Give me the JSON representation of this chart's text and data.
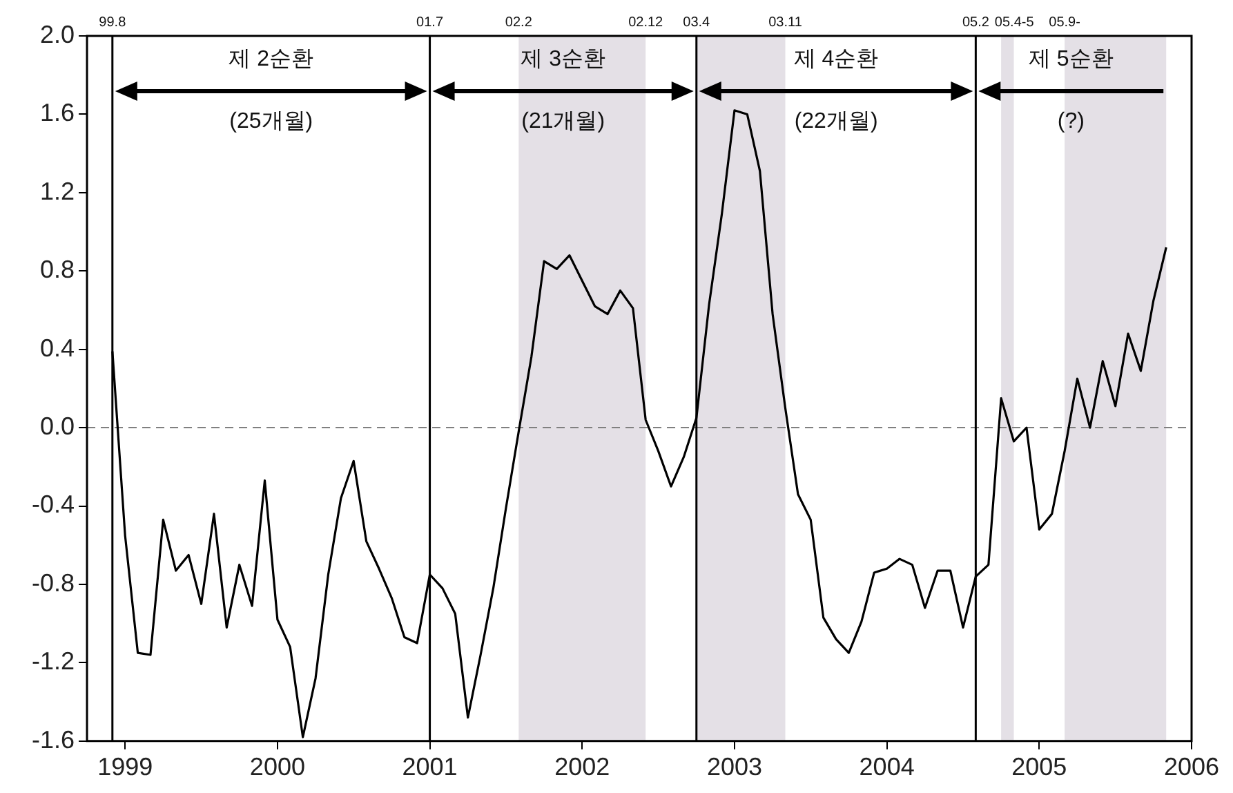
{
  "chart_data": {
    "type": "line",
    "x": [
      "1999-06",
      "1999-07",
      "1999-08",
      "1999-09",
      "1999-10",
      "1999-11",
      "1999-12",
      "2000-01",
      "2000-02",
      "2000-03",
      "2000-04",
      "2000-05",
      "2000-06",
      "2000-07",
      "2000-08",
      "2000-09",
      "2000-10",
      "2000-11",
      "2000-12",
      "2001-01",
      "2001-02",
      "2001-03",
      "2001-04",
      "2001-05",
      "2001-06",
      "2001-07",
      "2001-08",
      "2001-09",
      "2001-10",
      "2001-11",
      "2001-12",
      "2002-01",
      "2002-02",
      "2002-03",
      "2002-04",
      "2002-05",
      "2002-06",
      "2002-07",
      "2002-08",
      "2002-09",
      "2002-10",
      "2002-11",
      "2002-12",
      "2003-01",
      "2003-02",
      "2003-03",
      "2003-04",
      "2003-05",
      "2003-06",
      "2003-07",
      "2003-08",
      "2003-09",
      "2003-10",
      "2003-11",
      "2003-12",
      "2004-01",
      "2004-02",
      "2004-03",
      "2004-04",
      "2004-05",
      "2004-06",
      "2004-07",
      "2004-08",
      "2004-09",
      "2004-10",
      "2004-11",
      "2004-12",
      "2005-01",
      "2005-02",
      "2005-03",
      "2005-04",
      "2005-05",
      "2005-06",
      "2005-07",
      "2005-08",
      "2005-09",
      "2005-10",
      "2005-11",
      "2005-12",
      "2006-01",
      "2006-02",
      "2006-03",
      "2006-04",
      "2006-05"
    ],
    "series": [
      {
        "color": "#000000",
        "values": [
          0.39,
          -0.55,
          -1.15,
          -1.16,
          -0.47,
          -0.73,
          -0.65,
          -0.9,
          -0.44,
          -1.02,
          -0.7,
          -0.91,
          -0.27,
          -0.98,
          -1.12,
          -1.58,
          -1.28,
          -0.75,
          -0.36,
          -0.17,
          -0.58,
          -0.72,
          -0.87,
          -1.07,
          -1.1,
          -0.75,
          -0.82,
          -0.95,
          -1.48,
          -1.16,
          -0.82,
          -0.41,
          -0.02,
          0.36,
          0.85,
          0.81,
          0.88,
          0.75,
          0.62,
          0.58,
          0.7,
          0.61,
          0.04,
          -0.12,
          -0.3,
          -0.15,
          0.05,
          0.63,
          1.09,
          1.62,
          1.6,
          1.31,
          0.58,
          0.1,
          -0.34,
          -0.47,
          -0.97,
          -1.08,
          -1.15,
          -0.99,
          -0.74,
          -0.72,
          -0.67,
          -0.7,
          -0.92,
          -0.73,
          -0.73,
          -1.02,
          -0.76,
          -0.7,
          0.15,
          -0.07,
          0.0,
          -0.52,
          -0.44,
          -0.12,
          0.25,
          0.0,
          0.34,
          0.11,
          0.48,
          0.29,
          0.65,
          0.92
        ]
      }
    ],
    "xlim": [
      "1999-04",
      "2006-07"
    ],
    "xticks": [
      {
        "value": "1999-07",
        "label": "1999"
      },
      {
        "value": "2000-07",
        "label": "2000"
      },
      {
        "value": "2001-07",
        "label": "2001"
      },
      {
        "value": "2002-07",
        "label": "2002"
      },
      {
        "value": "2003-07",
        "label": "2003"
      },
      {
        "value": "2004-07",
        "label": "2004"
      },
      {
        "value": "2005-07",
        "label": "2005"
      },
      {
        "value": "2006-07",
        "label": "2006"
      }
    ],
    "ylim": [
      -1.6,
      2.0
    ],
    "yticks": [
      {
        "value": -1.6,
        "label": "-1.6"
      },
      {
        "value": -1.2,
        "label": "-1.2"
      },
      {
        "value": -0.8,
        "label": "-0.8"
      },
      {
        "value": -0.4,
        "label": "-0.4"
      },
      {
        "value": 0,
        "label": "0.0"
      },
      {
        "value": 0.4,
        "label": "0.4"
      },
      {
        "value": 0.8,
        "label": "0.8"
      },
      {
        "value": 1.2,
        "label": "1.2"
      },
      {
        "value": 1.6,
        "label": "1.6"
      },
      {
        "value": 2.0,
        "label": "2.0"
      }
    ],
    "grid": false,
    "legend": false,
    "ref_lines": [
      {
        "axis": "y",
        "value": 0,
        "color": "#808080",
        "line_style": "dashed"
      },
      {
        "axis": "x",
        "value": "1999-06",
        "color": "#000000",
        "line_style": "solid"
      },
      {
        "axis": "x",
        "value": "2001-07",
        "color": "#000000",
        "line_style": "solid"
      },
      {
        "axis": "x",
        "value": "2003-04",
        "color": "#000000",
        "line_style": "solid"
      },
      {
        "axis": "x",
        "value": "2005-02",
        "color": "#000000",
        "line_style": "solid"
      }
    ],
    "bands": [
      {
        "axis": "x",
        "from": "2002-02",
        "to": "2002-12",
        "color": "#e4e0e6"
      },
      {
        "axis": "x",
        "from": "2003-04",
        "to": "2003-11",
        "color": "#e4e0e6"
      },
      {
        "axis": "x",
        "from": "2005-04",
        "to": "2005-05",
        "color": "#e4e0e6"
      },
      {
        "axis": "x",
        "from": "2005-09",
        "to": "2006-05",
        "color": "#e4e0e6"
      }
    ],
    "annotations": [
      "99.8",
      "01.7",
      "02.2",
      "02.12",
      "03.4",
      "03.11",
      "05.2",
      "05.4-5",
      "05.9-",
      "제 2순환",
      "(25개월)",
      "제 3순환",
      "(21개월)",
      "제 4순환",
      "(22개월)",
      "제 5순환",
      "(?)"
    ]
  }
}
